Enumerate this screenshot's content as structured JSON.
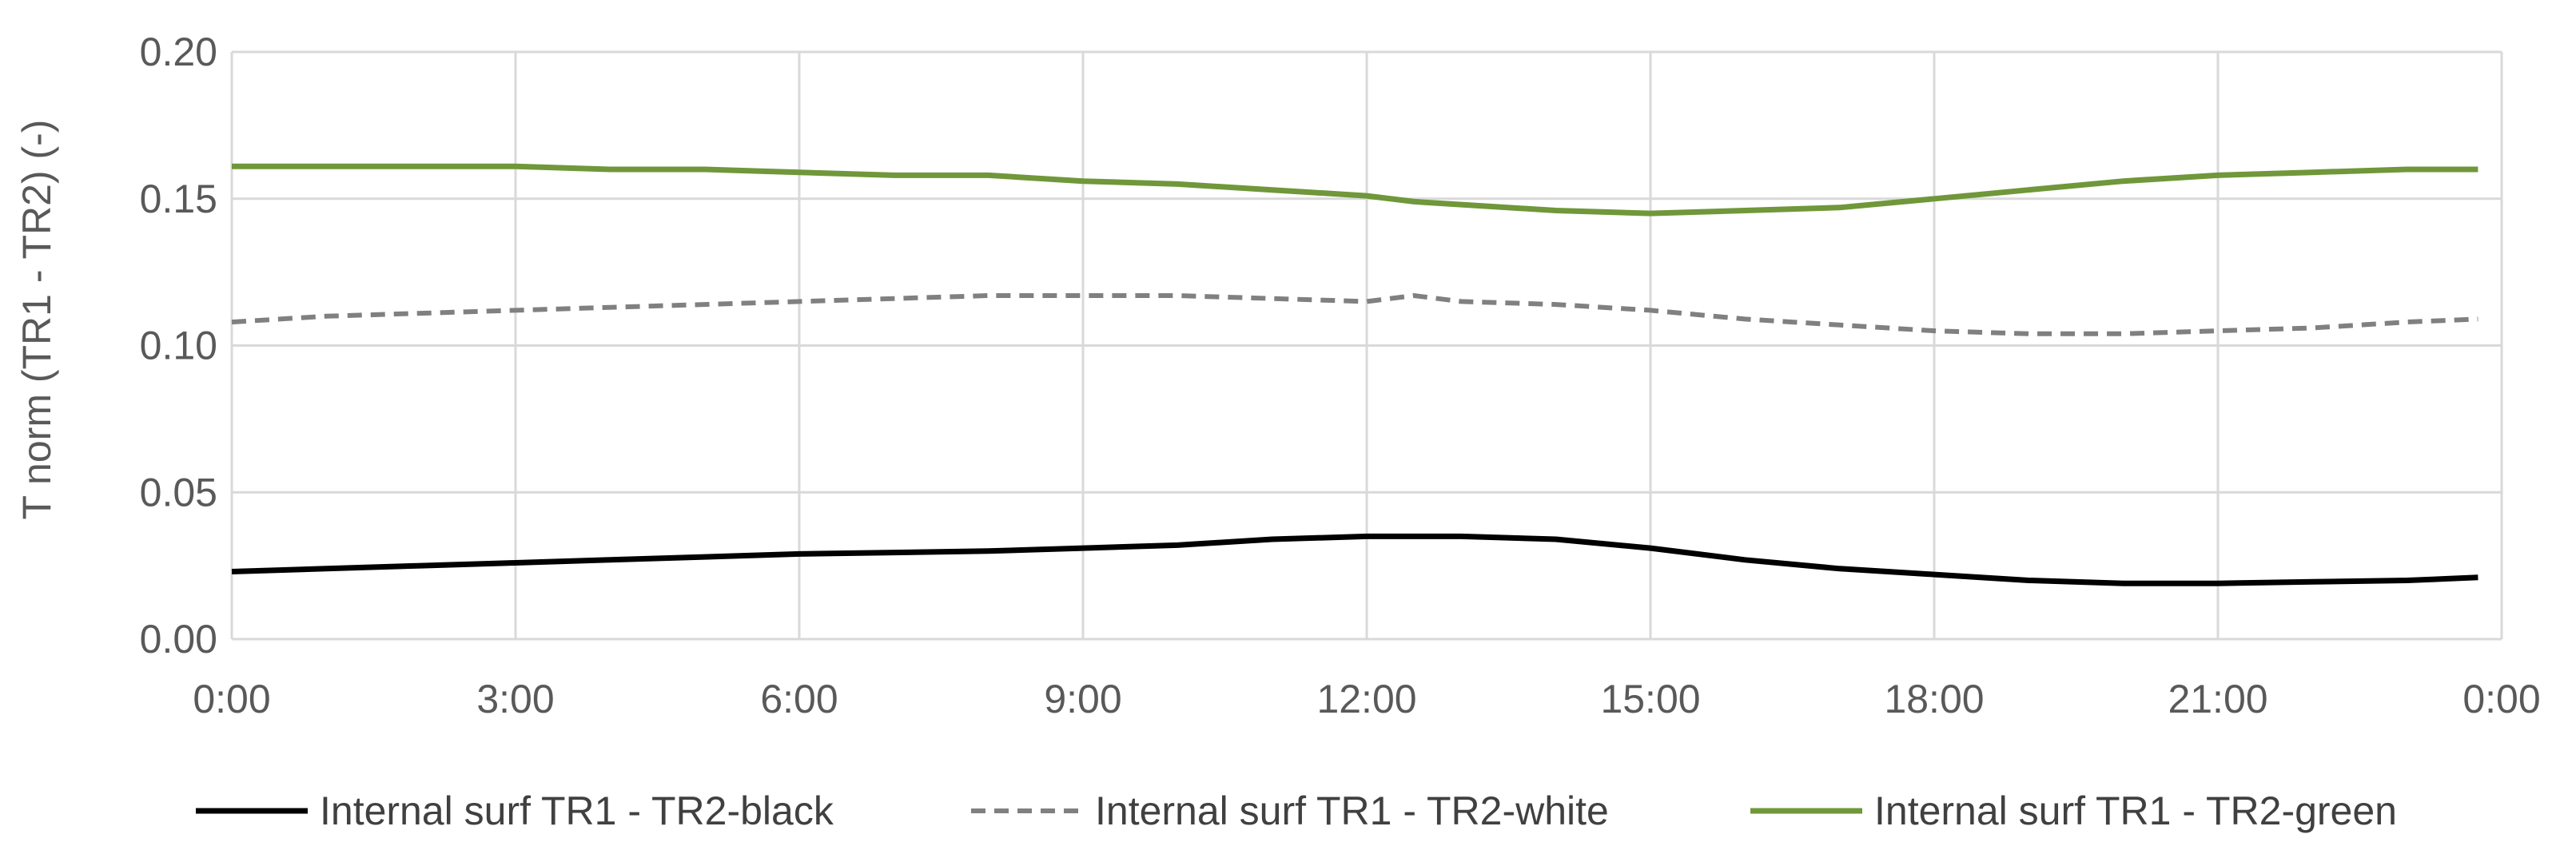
{
  "chart_data": {
    "type": "line",
    "title": "",
    "xlabel": "",
    "ylabel": "T norm (TR1 - TR2) (-)",
    "x_tick_labels": [
      "0:00",
      "3:00",
      "6:00",
      "9:00",
      "12:00",
      "15:00",
      "18:00",
      "21:00",
      "0:00"
    ],
    "y_tick_labels": [
      "0.00",
      "0.05",
      "0.10",
      "0.15",
      "0.20"
    ],
    "xlim_hours": [
      0,
      24
    ],
    "ylim": [
      0,
      0.2
    ],
    "y_ticks": [
      0,
      0.05,
      0.1,
      0.15,
      0.2
    ],
    "grid": true,
    "legend_position": "bottom",
    "x_hours": [
      0,
      1,
      2,
      3,
      4,
      5,
      6,
      7,
      8,
      9,
      10,
      11,
      12,
      12.5,
      13,
      14,
      15,
      16,
      17,
      18,
      19,
      20,
      21,
      22,
      23,
      23.75
    ],
    "series": [
      {
        "name": "Internal surf TR1 - TR2-black",
        "color": "#000000",
        "dash": "solid",
        "values": [
          0.023,
          0.024,
          0.025,
          0.026,
          0.027,
          0.028,
          0.029,
          0.0295,
          0.03,
          0.031,
          0.032,
          0.034,
          0.035,
          0.035,
          0.035,
          0.034,
          0.031,
          0.027,
          0.024,
          0.022,
          0.02,
          0.019,
          0.019,
          0.0195,
          0.02,
          0.021
        ]
      },
      {
        "name": "Internal surf TR1 - TR2-white",
        "color": "#808080",
        "dash": "dashed",
        "values": [
          0.108,
          0.11,
          0.111,
          0.112,
          0.113,
          0.114,
          0.115,
          0.116,
          0.117,
          0.117,
          0.117,
          0.116,
          0.115,
          0.117,
          0.115,
          0.114,
          0.112,
          0.109,
          0.107,
          0.105,
          0.104,
          0.104,
          0.105,
          0.106,
          0.108,
          0.109
        ]
      },
      {
        "name": "Internal surf TR1 - TR2-green",
        "color": "#70973A",
        "dash": "solid",
        "values": [
          0.161,
          0.161,
          0.161,
          0.161,
          0.16,
          0.16,
          0.159,
          0.158,
          0.158,
          0.156,
          0.155,
          0.153,
          0.151,
          0.149,
          0.148,
          0.146,
          0.145,
          0.146,
          0.147,
          0.15,
          0.153,
          0.156,
          0.158,
          0.159,
          0.16,
          0.16
        ]
      }
    ]
  }
}
